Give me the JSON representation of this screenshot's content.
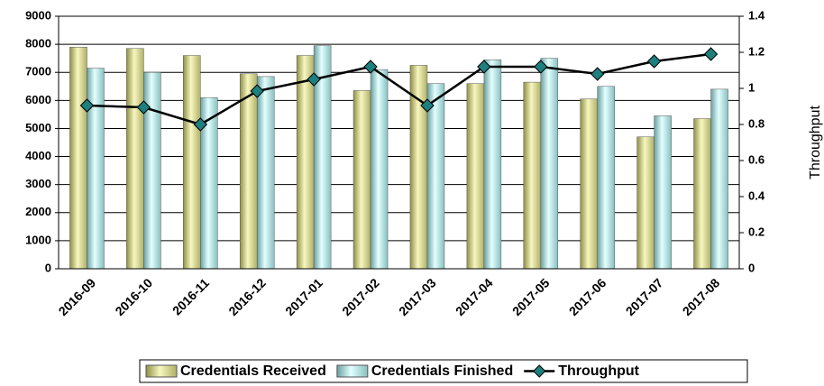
{
  "chart_data": {
    "type": "bar",
    "categories": [
      "2016-09",
      "2016-10",
      "2016-11",
      "2016-12",
      "2017-01",
      "2017-02",
      "2017-03",
      "2017-04",
      "2017-05",
      "2017-06",
      "2017-07",
      "2017-08"
    ],
    "series": [
      {
        "name": "Credentials Received",
        "type": "bar",
        "color": "#e6e69a",
        "values": [
          7900,
          7850,
          7600,
          6950,
          7600,
          6350,
          7250,
          6600,
          6650,
          6050,
          4700,
          5350
        ]
      },
      {
        "name": "Credentials Finished",
        "type": "bar",
        "color": "#bfeeee",
        "values": [
          7150,
          7000,
          6100,
          6850,
          7950,
          7100,
          6600,
          7450,
          7500,
          6500,
          5450,
          6400
        ]
      },
      {
        "name": "Throughput",
        "type": "line",
        "axis": "y2",
        "color": "#1e7f7f",
        "values": [
          0.905,
          0.895,
          0.8,
          0.985,
          1.05,
          1.12,
          0.905,
          1.12,
          1.12,
          1.08,
          1.15,
          1.19
        ]
      }
    ],
    "ylim": [
      0,
      9000
    ],
    "yticks": [
      0,
      1000,
      2000,
      3000,
      4000,
      5000,
      6000,
      7000,
      8000,
      9000
    ],
    "y2lim": [
      0,
      1.4
    ],
    "y2ticks": [
      0,
      0.2,
      0.4,
      0.6,
      0.8,
      1,
      1.2,
      1.4
    ],
    "y2label": "Throughput",
    "grid": true,
    "legend": "bottom"
  }
}
